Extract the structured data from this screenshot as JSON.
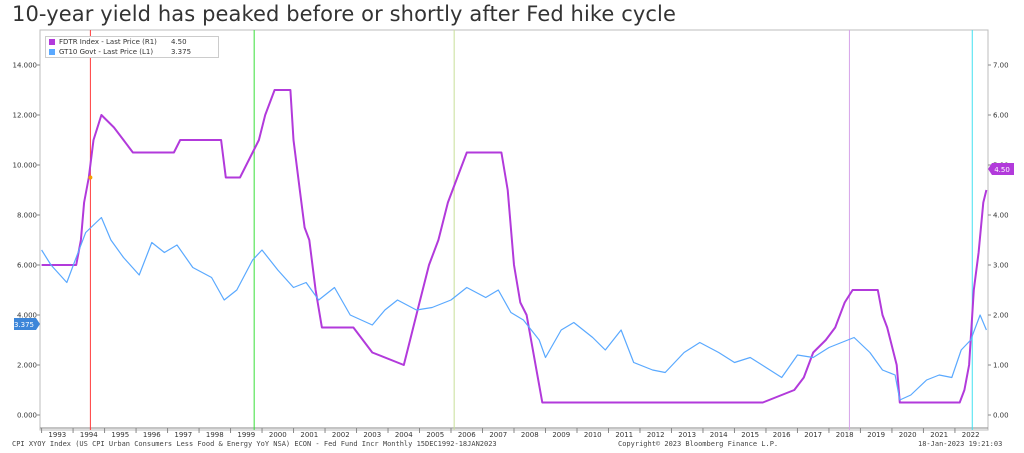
{
  "title": "10-year yield has peaked before or shortly after Fed hike cycle",
  "legend": {
    "items": [
      {
        "name": "FDTR Index - Last Price (R1)",
        "value": "4.50",
        "color": "#b23adb"
      },
      {
        "name": "GT10 Govt - Last Price (L1)",
        "value": "3.375",
        "color": "#5aa9ff"
      }
    ]
  },
  "badges": {
    "left": "3.375",
    "right": "4.50"
  },
  "footer": {
    "left": "CPI XYOY Index (US CPI Urban Consumers Less Food & Energy YoY NSA) ECON - Fed Fund Incr  Monthly 15DEC1992-18JAN2023",
    "center": "Copyright© 2023 Bloomberg Finance L.P.",
    "right": "18-Jan-2023 19:21:03"
  },
  "chart_data": {
    "type": "line",
    "x_range": [
      1992.95,
      2023.05
    ],
    "left_axis": {
      "ylim": [
        -0.6,
        15.4
      ],
      "ticks": [
        "0.000",
        "2.000",
        "4.000",
        "6.000",
        "8.000",
        "10.000",
        "12.000",
        "14.000"
      ],
      "tick_values": [
        0,
        2,
        4,
        6,
        8,
        10,
        12,
        14
      ]
    },
    "right_axis": {
      "ylim": [
        -0.3,
        7.7
      ],
      "ticks": [
        "0.00",
        "1.00",
        "2.00",
        "3.00",
        "4.00",
        "5.00",
        "6.00",
        "7.00"
      ],
      "tick_values": [
        0,
        1,
        2,
        3,
        4,
        5,
        6,
        7
      ]
    },
    "x_ticks": [
      "1993",
      "1994",
      "1995",
      "1996",
      "1997",
      "1998",
      "1999",
      "2000",
      "2001",
      "2002",
      "2003",
      "2004",
      "2005",
      "2006",
      "2007",
      "2008",
      "2009",
      "2010",
      "2011",
      "2012",
      "2013",
      "2014",
      "2015",
      "2016",
      "2017",
      "2018",
      "2019",
      "2020",
      "2021",
      "2022"
    ],
    "grid": false,
    "legend_position": "top-left",
    "vertical_lines": [
      {
        "x": 1994.55,
        "color": "#ff3b3b"
      },
      {
        "x": 1999.75,
        "color": "#39e039"
      },
      {
        "x": 2006.1,
        "color": "#c8e09a"
      },
      {
        "x": 2018.65,
        "color": "#d6a3e8"
      },
      {
        "x": 2022.55,
        "color": "#40e0f0"
      }
    ],
    "marker": {
      "x": 1994.55,
      "y": 9.5,
      "axis": "left",
      "color": "#f5a000"
    },
    "series": [
      {
        "name": "FDTR Index - Last Price (R1)",
        "axis": "right",
        "color": "#b23adb",
        "x": [
          1993.0,
          1994.1,
          1994.25,
          1994.35,
          1994.5,
          1994.65,
          1994.9,
          1995.3,
          1995.6,
          1995.9,
          1996.1,
          1997.2,
          1997.4,
          1998.7,
          1998.85,
          1999.3,
          1999.5,
          1999.9,
          2000.1,
          2000.4,
          2000.9,
          2001.0,
          2001.2,
          2001.35,
          2001.5,
          2001.7,
          2001.9,
          2002.9,
          2003.5,
          2004.5,
          2004.7,
          2005.0,
          2005.3,
          2005.6,
          2005.9,
          2006.2,
          2006.5,
          2007.6,
          2007.8,
          2008.0,
          2008.2,
          2008.4,
          2008.9,
          2015.9,
          2016.9,
          2017.2,
          2017.5,
          2017.9,
          2018.2,
          2018.5,
          2018.75,
          2019.55,
          2019.7,
          2019.85,
          2020.15,
          2020.25,
          2022.15,
          2022.3,
          2022.45,
          2022.6,
          2022.75,
          2022.9,
          2023.0
        ],
        "y": [
          3.0,
          3.0,
          3.5,
          4.25,
          4.75,
          5.5,
          6.0,
          5.75,
          5.5,
          5.25,
          5.25,
          5.25,
          5.5,
          5.5,
          4.75,
          4.75,
          5.0,
          5.5,
          6.0,
          6.5,
          6.5,
          5.5,
          4.5,
          3.75,
          3.5,
          2.5,
          1.75,
          1.75,
          1.25,
          1.0,
          1.5,
          2.25,
          3.0,
          3.5,
          4.25,
          4.75,
          5.25,
          5.25,
          4.5,
          3.0,
          2.25,
          2.0,
          0.25,
          0.25,
          0.5,
          0.75,
          1.25,
          1.5,
          1.75,
          2.25,
          2.5,
          2.5,
          2.0,
          1.75,
          1.0,
          0.25,
          0.25,
          0.5,
          1.0,
          2.5,
          3.25,
          4.25,
          4.5
        ]
      },
      {
        "name": "GT10 Govt - Last Price (L1)",
        "axis": "left",
        "color": "#5aa9ff",
        "x": [
          1993.0,
          1993.3,
          1993.8,
          1994.1,
          1994.4,
          1994.9,
          1995.2,
          1995.6,
          1996.1,
          1996.5,
          1996.9,
          1997.3,
          1997.8,
          1998.4,
          1998.8,
          1999.2,
          1999.7,
          2000.0,
          2000.5,
          2001.0,
          2001.4,
          2001.8,
          2002.3,
          2002.8,
          2003.5,
          2003.9,
          2004.3,
          2004.9,
          2005.4,
          2006.0,
          2006.5,
          2007.1,
          2007.5,
          2007.9,
          2008.3,
          2008.8,
          2009.0,
          2009.5,
          2009.9,
          2010.5,
          2010.9,
          2011.4,
          2011.8,
          2012.4,
          2012.8,
          2013.4,
          2013.9,
          2014.5,
          2015.0,
          2015.5,
          2016.0,
          2016.5,
          2017.0,
          2017.5,
          2018.0,
          2018.8,
          2019.3,
          2019.7,
          2020.1,
          2020.25,
          2020.6,
          2021.1,
          2021.5,
          2021.9,
          2022.2,
          2022.5,
          2022.8,
          2023.0
        ],
        "y": [
          6.6,
          6.0,
          5.3,
          6.3,
          7.3,
          7.9,
          7.0,
          6.3,
          5.6,
          6.9,
          6.5,
          6.8,
          5.9,
          5.5,
          4.6,
          5.0,
          6.2,
          6.6,
          5.8,
          5.1,
          5.3,
          4.6,
          5.1,
          4.0,
          3.6,
          4.2,
          4.6,
          4.2,
          4.3,
          4.6,
          5.1,
          4.7,
          5.0,
          4.1,
          3.8,
          3.0,
          2.3,
          3.4,
          3.7,
          3.1,
          2.6,
          3.4,
          2.1,
          1.8,
          1.7,
          2.5,
          2.9,
          2.5,
          2.1,
          2.3,
          1.9,
          1.5,
          2.4,
          2.3,
          2.7,
          3.1,
          2.5,
          1.8,
          1.6,
          0.6,
          0.8,
          1.4,
          1.6,
          1.5,
          2.6,
          3.0,
          4.0,
          3.4
        ]
      }
    ]
  }
}
